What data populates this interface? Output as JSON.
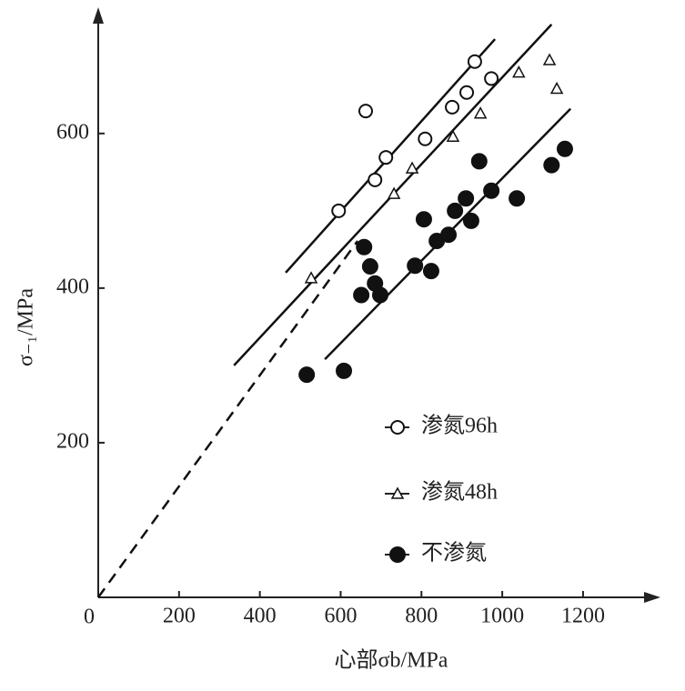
{
  "chart_data": {
    "type": "scatter",
    "x_label": "心部σb/MPa",
    "y_label": "σ₋₁/MPa",
    "origin_label": "0",
    "xlim": [
      0,
      1378
    ],
    "ylim": [
      0,
      755
    ],
    "xticks": [
      200,
      400,
      600,
      800,
      1000,
      1200
    ],
    "yticks": [
      200,
      400,
      600
    ],
    "series": [
      {
        "name": "渗氮96h",
        "marker": "open-circle",
        "color": "#111111",
        "x": [
          595,
          662,
          685,
          712,
          809,
          876,
          912,
          932,
          973
        ],
        "y": [
          500,
          629,
          540,
          569,
          593,
          634,
          653,
          693,
          671
        ]
      },
      {
        "name": "渗氮48h",
        "marker": "open-triangle",
        "color": "#111111",
        "x": [
          527,
          732,
          777,
          878,
          946,
          1041,
          1117,
          1135
        ],
        "y": [
          413,
          522,
          555,
          596,
          626,
          679,
          695,
          658
        ]
      },
      {
        "name": "不渗氮",
        "marker": "filled-circle",
        "color": "#111111",
        "x": [
          516,
          608,
          658,
          673,
          651,
          685,
          698,
          784,
          824,
          806,
          838,
          867,
          883,
          910,
          923,
          943,
          973,
          1036,
          1122,
          1155
        ],
        "y": [
          288,
          293,
          453,
          428,
          391,
          406,
          391,
          429,
          422,
          489,
          461,
          469,
          500,
          516,
          487,
          564,
          526,
          516,
          559,
          580
        ]
      }
    ],
    "lines": [
      {
        "x": [
          464,
          982
        ],
        "y": [
          420,
          722
        ],
        "dashed": false
      },
      {
        "x": [
          336,
          1122
        ],
        "y": [
          300,
          741
        ],
        "dashed": false
      },
      {
        "x": [
          561,
          1169
        ],
        "y": [
          308,
          632
        ],
        "dashed": false
      },
      {
        "x": [
          0,
          642
        ],
        "y": [
          0,
          461
        ],
        "dashed": true
      }
    ]
  }
}
